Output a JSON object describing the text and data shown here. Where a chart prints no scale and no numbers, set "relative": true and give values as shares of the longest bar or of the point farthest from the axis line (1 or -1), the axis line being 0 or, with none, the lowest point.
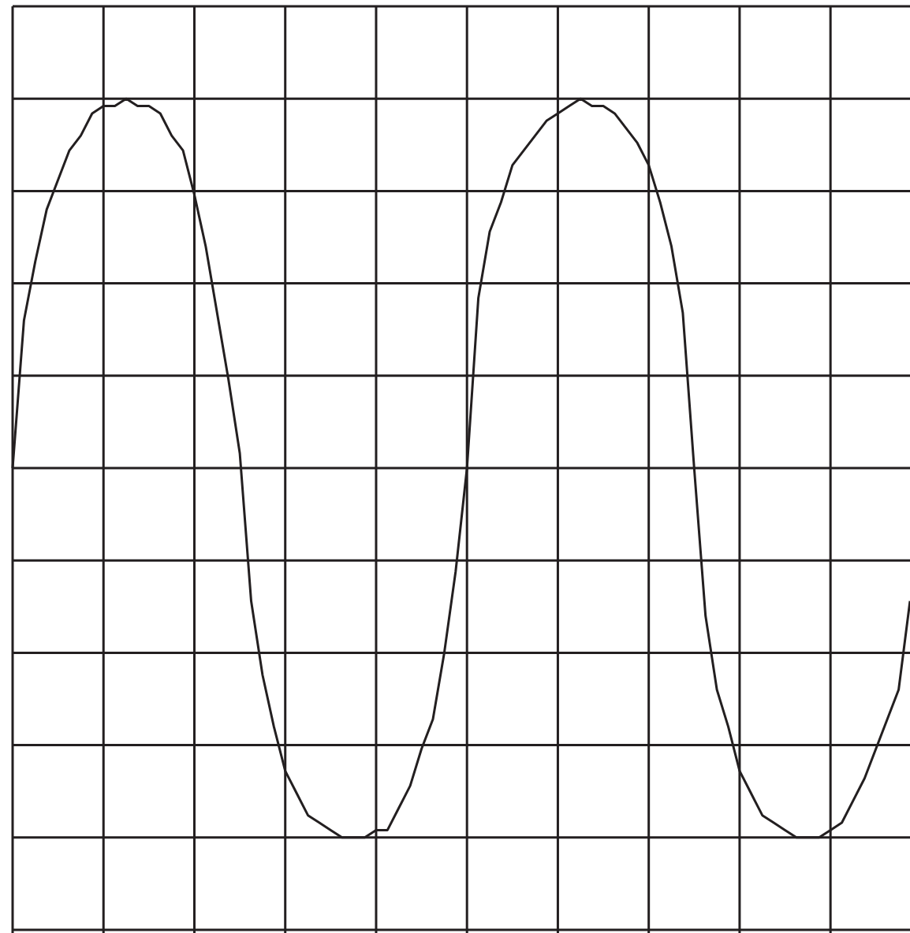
{
  "chart_data": {
    "type": "line",
    "relative": true,
    "grid": true,
    "color": "#231f20",
    "categories": [
      null,
      null,
      null,
      null,
      null,
      null,
      null,
      null,
      null,
      null,
      null,
      null,
      null,
      null,
      null,
      null,
      null,
      null,
      null,
      null,
      null,
      null,
      null,
      null,
      null,
      null,
      null,
      null,
      null,
      null,
      null,
      null,
      null,
      null,
      null,
      null,
      null,
      null,
      null,
      null,
      null,
      null,
      null,
      null,
      null,
      null,
      null,
      null,
      null,
      null,
      null,
      null,
      null,
      null,
      null,
      null,
      null,
      null,
      null,
      null,
      null,
      null,
      null,
      null,
      null,
      null,
      null,
      null,
      null,
      null,
      null,
      null,
      null,
      null,
      null,
      null,
      null,
      null,
      null,
      null
    ],
    "values": [
      0.5,
      0.7,
      0.78,
      0.85,
      0.89,
      0.93,
      0.95,
      0.98,
      0.99,
      0.99,
      1.0,
      0.99,
      0.99,
      0.98,
      0.95,
      0.93,
      0.87,
      0.8,
      0.71,
      0.62,
      0.52,
      0.32,
      0.22,
      0.15,
      0.09,
      0.06,
      0.03,
      0.02,
      0.01,
      0.0,
      0.0,
      0.0,
      0.01,
      0.01,
      0.04,
      0.07,
      0.12,
      0.16,
      0.25,
      0.36,
      0.5,
      0.73,
      0.82,
      0.86,
      0.91,
      0.93,
      0.95,
      0.97,
      0.98,
      0.99,
      1.0,
      0.99,
      0.99,
      0.98,
      0.96,
      0.94,
      0.91,
      0.86,
      0.8,
      0.71,
      0.5,
      0.3,
      0.2,
      0.15,
      0.09,
      0.06,
      0.03,
      0.02,
      0.01,
      0.0,
      0.0,
      0.0,
      0.01,
      0.02,
      0.05,
      0.08,
      0.12,
      0.16,
      0.2,
      0.32
    ],
    "marker": "none",
    "line_style": "solid"
  }
}
